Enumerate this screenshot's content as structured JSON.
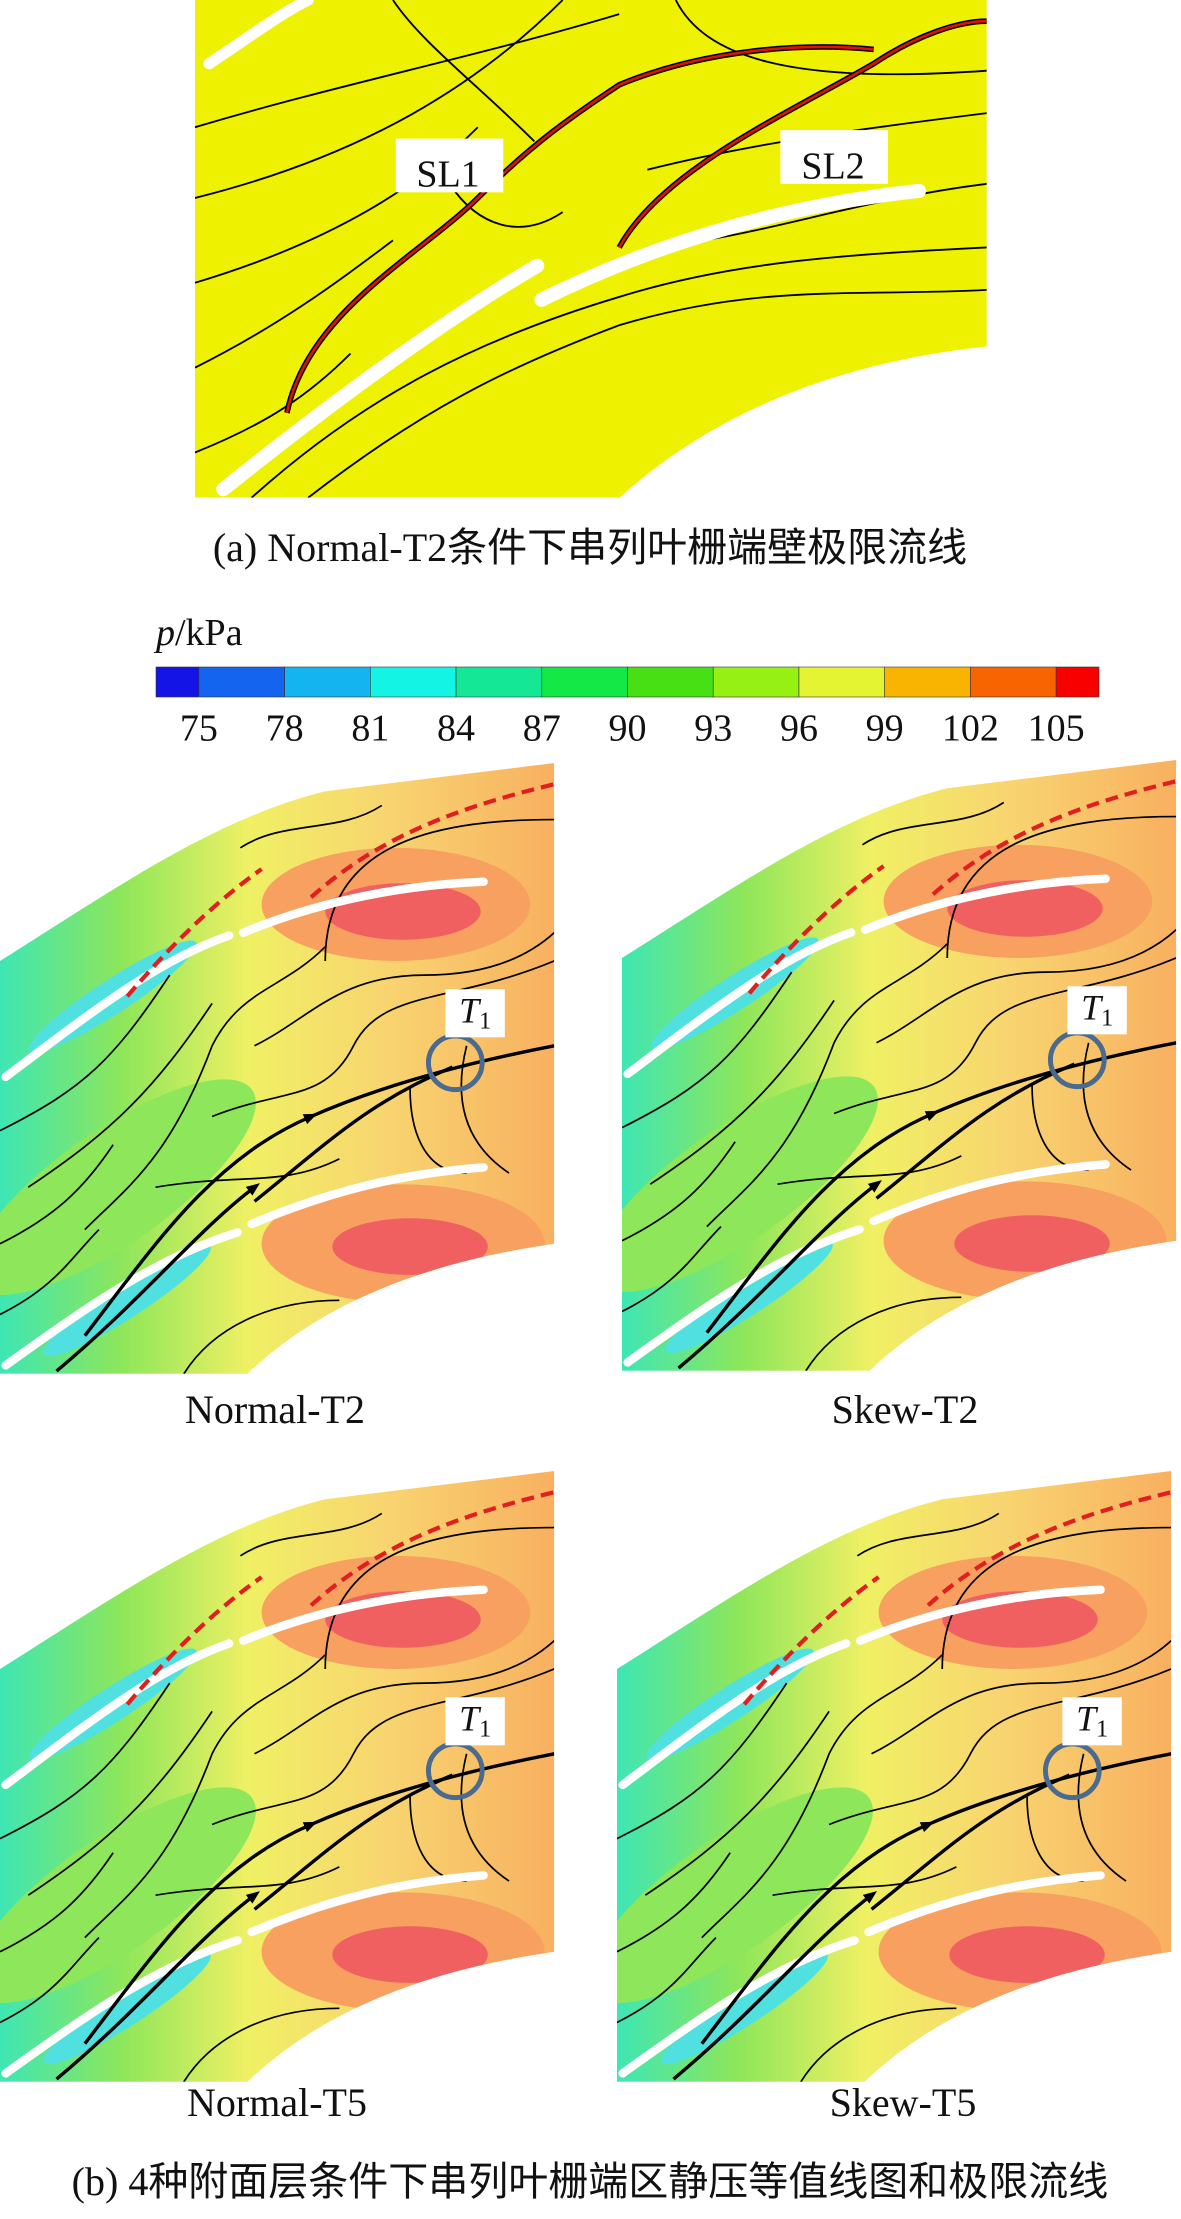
{
  "panel_a": {
    "labels": [
      "SL1",
      "SL2"
    ],
    "caption": "(a) Normal-T2条件下串列叶栅端壁极限流线"
  },
  "colorbar": {
    "label_italic": "p",
    "label_unit": "/kPa",
    "ticks": [
      75,
      78,
      81,
      84,
      87,
      90,
      93,
      96,
      99,
      102,
      105
    ],
    "colors": [
      "#1414e6",
      "#1464f0",
      "#14b4f0",
      "#14f4e4",
      "#14e896",
      "#14e846",
      "#46e014",
      "#96f014",
      "#e4f432",
      "#f8b400",
      "#f86400",
      "#f80000"
    ]
  },
  "panels": [
    {
      "caption": "Normal-T2",
      "marker": {
        "label": "T",
        "subscript": "1"
      }
    },
    {
      "caption": "Skew-T2",
      "marker": {
        "label": "T",
        "subscript": "1"
      }
    },
    {
      "caption": "Normal-T5",
      "marker": {
        "label": "T",
        "subscript": "1"
      }
    },
    {
      "caption": "Skew-T5",
      "marker": {
        "label": "T",
        "subscript": "1"
      }
    }
  ],
  "caption_b": "(b) 4种附面层条件下串列叶栅端区静压等值线图和极限流线"
}
